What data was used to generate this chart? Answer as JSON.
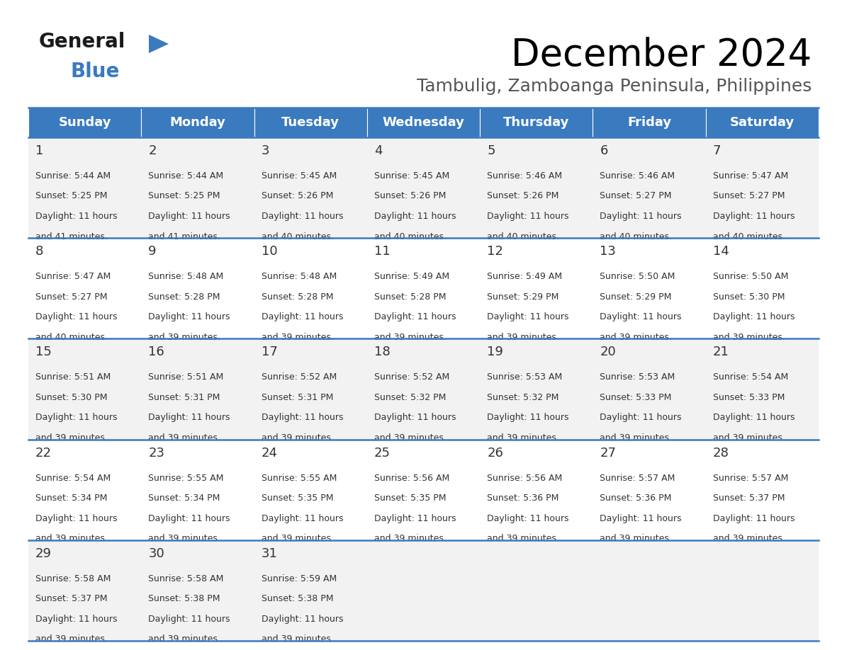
{
  "title": "December 2024",
  "subtitle": "Tambulig, Zamboanga Peninsula, Philippines",
  "header_color": "#3a7abf",
  "header_text_color": "#ffffff",
  "row_bg_even": "#f2f2f2",
  "row_bg_odd": "#ffffff",
  "border_color": "#3a7abf",
  "text_color": "#333333",
  "days_of_week": [
    "Sunday",
    "Monday",
    "Tuesday",
    "Wednesday",
    "Thursday",
    "Friday",
    "Saturday"
  ],
  "calendar_data": [
    [
      {
        "day": 1,
        "sunrise": "5:44 AM",
        "sunset": "5:25 PM",
        "daylight_hours": 11,
        "daylight_minutes": 41
      },
      {
        "day": 2,
        "sunrise": "5:44 AM",
        "sunset": "5:25 PM",
        "daylight_hours": 11,
        "daylight_minutes": 41
      },
      {
        "day": 3,
        "sunrise": "5:45 AM",
        "sunset": "5:26 PM",
        "daylight_hours": 11,
        "daylight_minutes": 40
      },
      {
        "day": 4,
        "sunrise": "5:45 AM",
        "sunset": "5:26 PM",
        "daylight_hours": 11,
        "daylight_minutes": 40
      },
      {
        "day": 5,
        "sunrise": "5:46 AM",
        "sunset": "5:26 PM",
        "daylight_hours": 11,
        "daylight_minutes": 40
      },
      {
        "day": 6,
        "sunrise": "5:46 AM",
        "sunset": "5:27 PM",
        "daylight_hours": 11,
        "daylight_minutes": 40
      },
      {
        "day": 7,
        "sunrise": "5:47 AM",
        "sunset": "5:27 PM",
        "daylight_hours": 11,
        "daylight_minutes": 40
      }
    ],
    [
      {
        "day": 8,
        "sunrise": "5:47 AM",
        "sunset": "5:27 PM",
        "daylight_hours": 11,
        "daylight_minutes": 40
      },
      {
        "day": 9,
        "sunrise": "5:48 AM",
        "sunset": "5:28 PM",
        "daylight_hours": 11,
        "daylight_minutes": 39
      },
      {
        "day": 10,
        "sunrise": "5:48 AM",
        "sunset": "5:28 PM",
        "daylight_hours": 11,
        "daylight_minutes": 39
      },
      {
        "day": 11,
        "sunrise": "5:49 AM",
        "sunset": "5:28 PM",
        "daylight_hours": 11,
        "daylight_minutes": 39
      },
      {
        "day": 12,
        "sunrise": "5:49 AM",
        "sunset": "5:29 PM",
        "daylight_hours": 11,
        "daylight_minutes": 39
      },
      {
        "day": 13,
        "sunrise": "5:50 AM",
        "sunset": "5:29 PM",
        "daylight_hours": 11,
        "daylight_minutes": 39
      },
      {
        "day": 14,
        "sunrise": "5:50 AM",
        "sunset": "5:30 PM",
        "daylight_hours": 11,
        "daylight_minutes": 39
      }
    ],
    [
      {
        "day": 15,
        "sunrise": "5:51 AM",
        "sunset": "5:30 PM",
        "daylight_hours": 11,
        "daylight_minutes": 39
      },
      {
        "day": 16,
        "sunrise": "5:51 AM",
        "sunset": "5:31 PM",
        "daylight_hours": 11,
        "daylight_minutes": 39
      },
      {
        "day": 17,
        "sunrise": "5:52 AM",
        "sunset": "5:31 PM",
        "daylight_hours": 11,
        "daylight_minutes": 39
      },
      {
        "day": 18,
        "sunrise": "5:52 AM",
        "sunset": "5:32 PM",
        "daylight_hours": 11,
        "daylight_minutes": 39
      },
      {
        "day": 19,
        "sunrise": "5:53 AM",
        "sunset": "5:32 PM",
        "daylight_hours": 11,
        "daylight_minutes": 39
      },
      {
        "day": 20,
        "sunrise": "5:53 AM",
        "sunset": "5:33 PM",
        "daylight_hours": 11,
        "daylight_minutes": 39
      },
      {
        "day": 21,
        "sunrise": "5:54 AM",
        "sunset": "5:33 PM",
        "daylight_hours": 11,
        "daylight_minutes": 39
      }
    ],
    [
      {
        "day": 22,
        "sunrise": "5:54 AM",
        "sunset": "5:34 PM",
        "daylight_hours": 11,
        "daylight_minutes": 39
      },
      {
        "day": 23,
        "sunrise": "5:55 AM",
        "sunset": "5:34 PM",
        "daylight_hours": 11,
        "daylight_minutes": 39
      },
      {
        "day": 24,
        "sunrise": "5:55 AM",
        "sunset": "5:35 PM",
        "daylight_hours": 11,
        "daylight_minutes": 39
      },
      {
        "day": 25,
        "sunrise": "5:56 AM",
        "sunset": "5:35 PM",
        "daylight_hours": 11,
        "daylight_minutes": 39
      },
      {
        "day": 26,
        "sunrise": "5:56 AM",
        "sunset": "5:36 PM",
        "daylight_hours": 11,
        "daylight_minutes": 39
      },
      {
        "day": 27,
        "sunrise": "5:57 AM",
        "sunset": "5:36 PM",
        "daylight_hours": 11,
        "daylight_minutes": 39
      },
      {
        "day": 28,
        "sunrise": "5:57 AM",
        "sunset": "5:37 PM",
        "daylight_hours": 11,
        "daylight_minutes": 39
      }
    ],
    [
      {
        "day": 29,
        "sunrise": "5:58 AM",
        "sunset": "5:37 PM",
        "daylight_hours": 11,
        "daylight_minutes": 39
      },
      {
        "day": 30,
        "sunrise": "5:58 AM",
        "sunset": "5:38 PM",
        "daylight_hours": 11,
        "daylight_minutes": 39
      },
      {
        "day": 31,
        "sunrise": "5:59 AM",
        "sunset": "5:38 PM",
        "daylight_hours": 11,
        "daylight_minutes": 39
      },
      null,
      null,
      null,
      null
    ]
  ],
  "logo_general_color": "#1a1a1a",
  "logo_blue_color": "#3a7abf",
  "logo_triangle_color": "#3a7abf",
  "title_fontsize": 38,
  "subtitle_fontsize": 18,
  "header_fontsize": 13,
  "day_num_fontsize": 13,
  "cell_text_fontsize": 9
}
